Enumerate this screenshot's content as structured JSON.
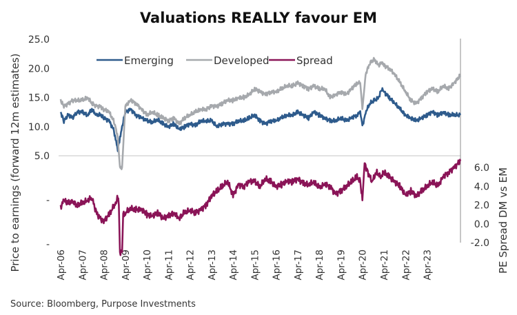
{
  "chart_data": {
    "type": "line",
    "title": "Valuations REALLY favour EM",
    "source": "Source: Bloomberg, Purpose Investments",
    "ylabel_left": "Price to earnings (forward 12m estimates)",
    "ylabel_right": "PE Spread DM vs EM",
    "left_axis": {
      "ticks": [
        "25.0",
        "20.0",
        "15.0",
        "10.0",
        "5.0",
        "-",
        "-"
      ],
      "tick_values": [
        25,
        20,
        15,
        10,
        5,
        0,
        -5
      ],
      "ylim": [
        -5,
        25
      ]
    },
    "right_axis": {
      "ticks": [
        "6.0",
        "4.0",
        "2.0",
        "0.0",
        "-2.0"
      ],
      "tick_values": [
        6,
        4,
        2,
        0,
        -2
      ],
      "ylim": [
        -2,
        6
      ]
    },
    "x_tick_labels": [
      "Apr-06",
      "Apr-07",
      "Apr-08",
      "Apr-09",
      "Apr-10",
      "Apr-11",
      "Apr-12",
      "Apr-13",
      "Apr-14",
      "Apr-15",
      "Apr-16",
      "Apr-17",
      "Apr-18",
      "Apr-19",
      "Apr-20",
      "Apr-21",
      "Apr-22",
      "Apr-23"
    ],
    "xlim": [
      2006.25,
      2024.8
    ],
    "grid": false,
    "legend": {
      "position": "top",
      "entries": [
        "Emerging",
        "Developed",
        "Spread"
      ]
    },
    "series": [
      {
        "name": "Emerging",
        "axis": "left",
        "color": "#2e5b8c",
        "x": [
          2006.25,
          2006.4,
          2006.6,
          2006.8,
          2007.0,
          2007.25,
          2007.5,
          2007.7,
          2007.9,
          2008.1,
          2008.25,
          2008.5,
          2008.7,
          2008.8,
          2008.9,
          2009.0,
          2009.1,
          2009.25,
          2009.5,
          2009.75,
          2010.0,
          2010.25,
          2010.5,
          2010.75,
          2011.0,
          2011.25,
          2011.5,
          2011.75,
          2012.0,
          2012.25,
          2012.5,
          2012.75,
          2013.0,
          2013.25,
          2013.5,
          2013.75,
          2014.0,
          2014.25,
          2014.5,
          2014.75,
          2015.0,
          2015.25,
          2015.5,
          2015.75,
          2016.0,
          2016.25,
          2016.5,
          2016.75,
          2017.0,
          2017.25,
          2017.5,
          2017.75,
          2018.0,
          2018.25,
          2018.5,
          2018.75,
          2019.0,
          2019.25,
          2019.5,
          2019.75,
          2020.0,
          2020.15,
          2020.25,
          2020.4,
          2020.6,
          2020.8,
          2021.0,
          2021.15,
          2021.25,
          2021.5,
          2021.75,
          2022.0,
          2022.25,
          2022.5,
          2022.75,
          2023.0,
          2023.25,
          2023.5,
          2023.75,
          2024.0,
          2024.25,
          2024.5,
          2024.8
        ],
        "values": [
          12.5,
          11.0,
          12.0,
          11.5,
          12.5,
          12.5,
          12.0,
          13.0,
          12.0,
          12.0,
          11.5,
          11.0,
          9.5,
          8.0,
          6.0,
          8.0,
          10.0,
          12.5,
          13.0,
          12.0,
          11.5,
          11.0,
          10.8,
          11.2,
          10.5,
          10.0,
          10.5,
          9.5,
          10.0,
          10.5,
          10.2,
          11.0,
          11.0,
          11.0,
          10.0,
          10.5,
          10.5,
          10.5,
          11.0,
          11.0,
          11.5,
          12.0,
          11.0,
          10.5,
          11.0,
          11.0,
          11.5,
          12.0,
          12.0,
          12.5,
          12.0,
          11.5,
          12.5,
          12.0,
          11.5,
          11.0,
          11.0,
          11.5,
          11.0,
          11.5,
          12.0,
          12.5,
          10.0,
          12.5,
          14.0,
          14.5,
          15.0,
          16.5,
          16.0,
          15.0,
          14.0,
          13.0,
          12.0,
          11.5,
          11.0,
          11.5,
          12.0,
          12.5,
          12.0,
          12.5,
          12.0,
          12.0,
          12.0
        ]
      },
      {
        "name": "Developed",
        "axis": "left",
        "color": "#a6a9ad",
        "x": [
          2006.25,
          2006.4,
          2006.6,
          2006.8,
          2007.0,
          2007.25,
          2007.5,
          2007.7,
          2007.9,
          2008.1,
          2008.25,
          2008.5,
          2008.7,
          2008.8,
          2008.9,
          2009.0,
          2009.1,
          2009.25,
          2009.5,
          2009.75,
          2010.0,
          2010.25,
          2010.5,
          2010.75,
          2011.0,
          2011.25,
          2011.5,
          2011.75,
          2012.0,
          2012.25,
          2012.5,
          2012.75,
          2013.0,
          2013.25,
          2013.5,
          2013.75,
          2014.0,
          2014.25,
          2014.5,
          2014.75,
          2015.0,
          2015.25,
          2015.5,
          2015.75,
          2016.0,
          2016.25,
          2016.5,
          2016.75,
          2017.0,
          2017.25,
          2017.5,
          2017.75,
          2018.0,
          2018.25,
          2018.5,
          2018.75,
          2019.0,
          2019.25,
          2019.5,
          2019.75,
          2020.0,
          2020.15,
          2020.25,
          2020.4,
          2020.6,
          2020.8,
          2021.0,
          2021.15,
          2021.25,
          2021.5,
          2021.75,
          2022.0,
          2022.25,
          2022.5,
          2022.75,
          2023.0,
          2023.25,
          2023.5,
          2023.75,
          2024.0,
          2024.25,
          2024.5,
          2024.8
        ],
        "values": [
          14.5,
          13.5,
          14.0,
          14.5,
          14.5,
          14.5,
          15.0,
          14.0,
          13.5,
          13.5,
          13.0,
          12.5,
          11.0,
          10.0,
          8.0,
          3.0,
          3.0,
          13.5,
          14.5,
          14.0,
          13.0,
          12.0,
          12.5,
          12.0,
          11.5,
          11.0,
          11.5,
          10.5,
          11.5,
          12.0,
          12.5,
          13.0,
          13.0,
          13.5,
          13.5,
          14.0,
          14.5,
          14.5,
          15.0,
          15.0,
          15.5,
          16.5,
          16.0,
          15.5,
          16.0,
          16.0,
          16.5,
          17.0,
          17.0,
          17.5,
          17.0,
          16.5,
          17.0,
          16.5,
          16.5,
          15.0,
          15.5,
          16.0,
          15.5,
          16.5,
          17.5,
          17.5,
          13.0,
          19.0,
          21.0,
          21.5,
          20.5,
          21.0,
          20.5,
          20.0,
          19.0,
          17.5,
          16.0,
          14.5,
          14.0,
          15.0,
          16.0,
          16.5,
          16.0,
          17.0,
          16.5,
          17.5,
          18.8
        ]
      },
      {
        "name": "Spread",
        "axis": "right",
        "color": "#8a1457",
        "x": [
          2006.25,
          2006.4,
          2006.6,
          2006.8,
          2007.0,
          2007.25,
          2007.5,
          2007.7,
          2007.9,
          2008.1,
          2008.25,
          2008.5,
          2008.7,
          2008.8,
          2008.9,
          2008.95,
          2009.0,
          2009.1,
          2009.15,
          2009.25,
          2009.5,
          2009.75,
          2010.0,
          2010.25,
          2010.5,
          2010.75,
          2011.0,
          2011.25,
          2011.5,
          2011.75,
          2012.0,
          2012.25,
          2012.5,
          2012.75,
          2013.0,
          2013.25,
          2013.5,
          2013.75,
          2014.0,
          2014.25,
          2014.5,
          2014.75,
          2015.0,
          2015.25,
          2015.5,
          2015.75,
          2016.0,
          2016.25,
          2016.5,
          2016.75,
          2017.0,
          2017.25,
          2017.5,
          2017.75,
          2018.0,
          2018.25,
          2018.5,
          2018.75,
          2019.0,
          2019.25,
          2019.5,
          2019.75,
          2020.0,
          2020.15,
          2020.25,
          2020.35,
          2020.5,
          2020.7,
          2020.9,
          2021.1,
          2021.25,
          2021.5,
          2021.75,
          2022.0,
          2022.25,
          2022.5,
          2022.75,
          2023.0,
          2023.25,
          2023.5,
          2023.75,
          2024.0,
          2024.25,
          2024.5,
          2024.8
        ],
        "values": [
          1.8,
          2.5,
          2.2,
          2.4,
          2.0,
          2.2,
          2.5,
          2.8,
          1.2,
          0.5,
          0.3,
          1.0,
          1.8,
          2.2,
          2.8,
          2.0,
          -3.0,
          -3.0,
          1.0,
          1.2,
          1.6,
          1.5,
          1.6,
          1.0,
          0.8,
          1.2,
          0.6,
          0.8,
          1.2,
          0.6,
          1.2,
          1.4,
          1.2,
          1.5,
          2.0,
          3.0,
          3.5,
          4.0,
          4.5,
          3.0,
          4.2,
          4.0,
          4.5,
          4.5,
          4.0,
          4.8,
          4.5,
          4.0,
          4.2,
          4.5,
          4.5,
          4.8,
          4.3,
          4.2,
          4.5,
          3.8,
          4.2,
          4.0,
          3.2,
          3.5,
          4.0,
          4.5,
          5.0,
          4.5,
          2.5,
          6.5,
          5.5,
          4.5,
          5.5,
          5.0,
          5.5,
          5.0,
          4.5,
          4.0,
          3.0,
          3.5,
          3.0,
          3.5,
          4.0,
          4.5,
          4.0,
          5.0,
          5.5,
          6.0,
          6.7
        ]
      }
    ]
  }
}
